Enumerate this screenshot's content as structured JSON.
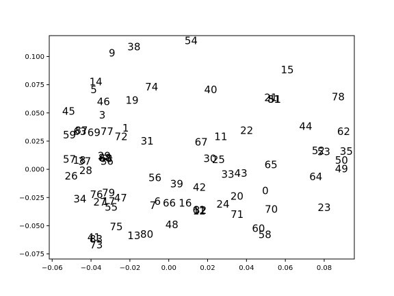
{
  "chart_data": {
    "type": "scatter",
    "title": "",
    "xlabel": "",
    "ylabel": "",
    "xlim": [
      -0.0615,
      0.0955
    ],
    "ylim": [
      -0.0795,
      0.1185
    ],
    "grid": false,
    "legend": "none",
    "x_ticks": [
      "−0.06",
      "−0.04",
      "−0.02",
      "0.00",
      "0.02",
      "0.04",
      "0.06",
      "0.08"
    ],
    "x_tick_values": [
      -0.06,
      -0.04,
      -0.02,
      0.0,
      0.02,
      0.04,
      0.06,
      0.08
    ],
    "y_ticks": [
      "−0.075",
      "−0.050",
      "−0.025",
      "0.000",
      "0.025",
      "0.050",
      "0.075",
      "0.100"
    ],
    "y_tick_values": [
      -0.075,
      -0.05,
      -0.025,
      0.0,
      0.025,
      0.05,
      0.075,
      0.1
    ],
    "points": [
      {
        "label": "0",
        "x": 0.0497,
        "y": -0.019
      },
      {
        "label": "1",
        "x": -0.0222,
        "y": 0.0365
      },
      {
        "label": "3",
        "x": -0.0342,
        "y": 0.048
      },
      {
        "label": "5",
        "x": -0.0386,
        "y": 0.0705
      },
      {
        "label": "6",
        "x": -0.0058,
        "y": -0.0285
      },
      {
        "label": "7",
        "x": -0.0082,
        "y": -0.032
      },
      {
        "label": "9",
        "x": -0.0292,
        "y": 0.103
      },
      {
        "label": "11",
        "x": 0.0268,
        "y": 0.029
      },
      {
        "label": "12",
        "x": 0.0157,
        "y": -0.037
      },
      {
        "label": "13",
        "x": -0.0179,
        "y": -0.059
      },
      {
        "label": "14",
        "x": -0.0375,
        "y": 0.0775
      },
      {
        "label": "15",
        "x": 0.061,
        "y": 0.088
      },
      {
        "label": "16",
        "x": 0.0085,
        "y": -0.03
      },
      {
        "label": "17",
        "x": -0.0309,
        "y": -0.0285
      },
      {
        "label": "18",
        "x": -0.046,
        "y": 0.008
      },
      {
        "label": "19",
        "x": -0.0189,
        "y": 0.061
      },
      {
        "label": "20",
        "x": 0.0351,
        "y": -0.024
      },
      {
        "label": "21",
        "x": 0.0525,
        "y": 0.0635
      },
      {
        "label": "22",
        "x": 0.0401,
        "y": 0.0345
      },
      {
        "label": "23",
        "x": 0.08,
        "y": -0.034
      },
      {
        "label": "24",
        "x": 0.0279,
        "y": -0.031
      },
      {
        "label": "25",
        "x": 0.0256,
        "y": 0.0085
      },
      {
        "label": "26",
        "x": -0.0502,
        "y": -0.006
      },
      {
        "label": "27",
        "x": -0.0355,
        "y": -0.029
      },
      {
        "label": "28",
        "x": -0.0427,
        "y": -0.001
      },
      {
        "label": "29",
        "x": -0.0332,
        "y": 0.012
      },
      {
        "label": "30",
        "x": 0.0212,
        "y": 0.0095
      },
      {
        "label": "31",
        "x": -0.0111,
        "y": 0.025
      },
      {
        "label": "32",
        "x": 0.0162,
        "y": -0.0365
      },
      {
        "label": "33",
        "x": 0.0304,
        "y": -0.0045
      },
      {
        "label": "34",
        "x": -0.0457,
        "y": -0.0265
      },
      {
        "label": "35",
        "x": 0.0914,
        "y": 0.016
      },
      {
        "label": "36",
        "x": -0.0318,
        "y": 0.007
      },
      {
        "label": "37",
        "x": -0.0433,
        "y": 0.007
      },
      {
        "label": "38",
        "x": -0.0179,
        "y": 0.1085
      },
      {
        "label": "39",
        "x": 0.0041,
        "y": -0.013
      },
      {
        "label": "40",
        "x": 0.0216,
        "y": 0.0705
      },
      {
        "label": "41",
        "x": -0.0385,
        "y": -0.0605
      },
      {
        "label": "42",
        "x": 0.0158,
        "y": -0.016
      },
      {
        "label": "43",
        "x": 0.0371,
        "y": -0.0035
      },
      {
        "label": "44",
        "x": 0.0705,
        "y": 0.038
      },
      {
        "label": "45",
        "x": -0.0515,
        "y": 0.0515
      },
      {
        "label": "46",
        "x": -0.0336,
        "y": 0.06
      },
      {
        "label": "47",
        "x": -0.0248,
        "y": -0.0255
      },
      {
        "label": "48",
        "x": 0.0016,
        "y": -0.049
      },
      {
        "label": "49",
        "x": 0.0889,
        "y": 0.0005
      },
      {
        "label": "50",
        "x": 0.0889,
        "y": 0.008
      },
      {
        "label": "51",
        "x": 0.0545,
        "y": 0.062
      },
      {
        "label": "52",
        "x": 0.077,
        "y": 0.0165
      },
      {
        "label": "53",
        "x": 0.0798,
        "y": 0.0155
      },
      {
        "label": "54",
        "x": 0.0115,
        "y": 0.114
      },
      {
        "label": "55",
        "x": -0.0296,
        "y": -0.0335
      },
      {
        "label": "56",
        "x": -0.0071,
        "y": -0.0075
      },
      {
        "label": "57",
        "x": -0.0511,
        "y": 0.009
      },
      {
        "label": "58",
        "x": 0.0495,
        "y": -0.058
      },
      {
        "label": "59",
        "x": -0.0511,
        "y": 0.0305
      },
      {
        "label": "60",
        "x": 0.0462,
        "y": -0.0525
      },
      {
        "label": "61",
        "x": 0.0156,
        "y": -0.036
      },
      {
        "label": "62",
        "x": 0.09,
        "y": 0.0335
      },
      {
        "label": "63",
        "x": -0.0457,
        "y": 0.0335
      },
      {
        "label": "64",
        "x": 0.0757,
        "y": -0.0065
      },
      {
        "label": "65",
        "x": 0.0526,
        "y": 0.004
      },
      {
        "label": "66",
        "x": 0.0003,
        "y": -0.03
      },
      {
        "label": "67",
        "x": 0.0167,
        "y": 0.024
      },
      {
        "label": "68",
        "x": -0.0323,
        "y": 0.0095
      },
      {
        "label": "69",
        "x": -0.0385,
        "y": 0.0325
      },
      {
        "label": "70",
        "x": 0.0528,
        "y": -0.0355
      },
      {
        "label": "71",
        "x": 0.0352,
        "y": -0.04
      },
      {
        "label": "72",
        "x": -0.0245,
        "y": 0.029
      },
      {
        "label": "73",
        "x": -0.0373,
        "y": -0.067
      },
      {
        "label": "74",
        "x": -0.0088,
        "y": 0.073
      },
      {
        "label": "75",
        "x": -0.027,
        "y": -0.051
      },
      {
        "label": "76",
        "x": -0.0372,
        "y": -0.0225
      },
      {
        "label": "77",
        "x": -0.0318,
        "y": 0.0335
      },
      {
        "label": "78",
        "x": 0.0872,
        "y": 0.064
      },
      {
        "label": "79",
        "x": -0.031,
        "y": -0.021
      },
      {
        "label": "80",
        "x": -0.0113,
        "y": -0.0575
      },
      {
        "label": "81",
        "x": 0.0541,
        "y": 0.062
      },
      {
        "label": "83",
        "x": -0.0374,
        "y": -0.062
      },
      {
        "label": "87",
        "x": -0.045,
        "y": 0.0345
      },
      {
        "label": "88",
        "x": -0.0328,
        "y": 0.01
      }
    ]
  }
}
